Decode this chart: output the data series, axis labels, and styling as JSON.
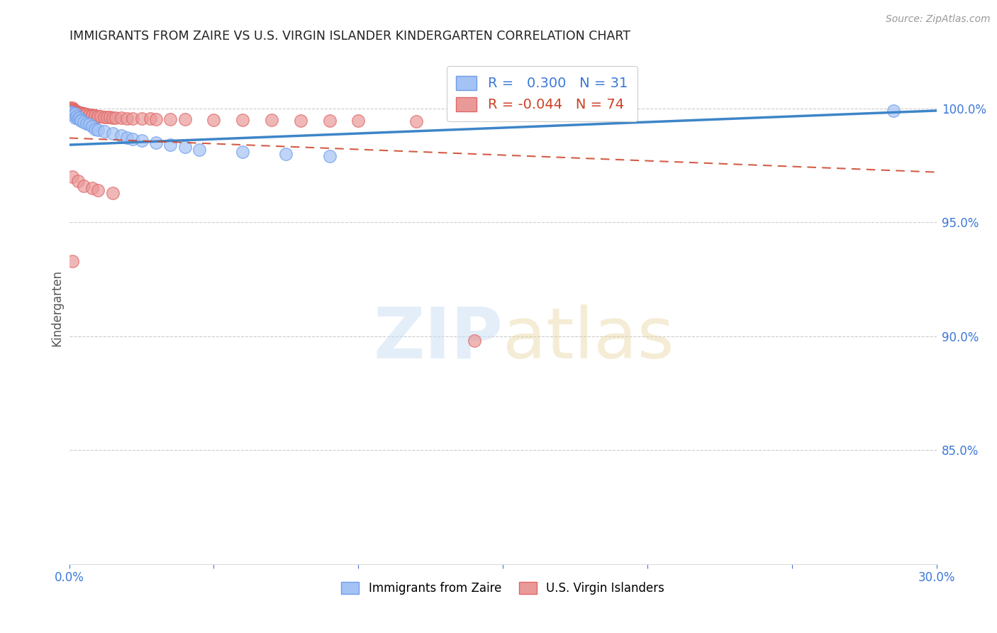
{
  "title": "IMMIGRANTS FROM ZAIRE VS U.S. VIRGIN ISLANDER KINDERGARTEN CORRELATION CHART",
  "source": "Source: ZipAtlas.com",
  "ylabel": "Kindergarten",
  "legend_label_blue": "Immigrants from Zaire",
  "legend_label_pink": "U.S. Virgin Islanders",
  "R_blue": 0.3,
  "N_blue": 31,
  "R_pink": -0.044,
  "N_pink": 74,
  "blue_color": "#a4c2f4",
  "blue_edge_color": "#6d9eeb",
  "pink_color": "#ea9999",
  "pink_edge_color": "#e06666",
  "blue_line_color": "#3d85c8",
  "pink_line_color": "#cc4125",
  "xlim": [
    0.0,
    0.3
  ],
  "ylim": [
    0.8,
    1.025
  ],
  "right_ytick_values": [
    1.0,
    0.95,
    0.9,
    0.85
  ],
  "right_ytick_labels": [
    "100.0%",
    "95.0%",
    "90.0%",
    "85.0%"
  ],
  "blue_scatter_x": [
    0.0005,
    0.001,
    0.0012,
    0.0015,
    0.002,
    0.002,
    0.0025,
    0.003,
    0.0035,
    0.004,
    0.004,
    0.005,
    0.006,
    0.007,
    0.008,
    0.009,
    0.01,
    0.012,
    0.015,
    0.018,
    0.02,
    0.022,
    0.025,
    0.03,
    0.035,
    0.04,
    0.045,
    0.06,
    0.075,
    0.09,
    0.285
  ],
  "blue_scatter_y": [
    0.9985,
    0.9975,
    0.998,
    0.997,
    0.9978,
    0.996,
    0.9965,
    0.9955,
    0.996,
    0.995,
    0.9945,
    0.994,
    0.9935,
    0.993,
    0.992,
    0.991,
    0.9905,
    0.99,
    0.989,
    0.988,
    0.987,
    0.9865,
    0.986,
    0.985,
    0.984,
    0.983,
    0.982,
    0.981,
    0.98,
    0.979,
    0.999
  ],
  "pink_scatter_x": [
    0.0002,
    0.0003,
    0.0004,
    0.0005,
    0.0006,
    0.0007,
    0.0008,
    0.0009,
    0.001,
    0.001,
    0.001,
    0.001,
    0.001,
    0.001,
    0.0012,
    0.0012,
    0.0015,
    0.0015,
    0.0018,
    0.002,
    0.002,
    0.002,
    0.002,
    0.0022,
    0.0025,
    0.003,
    0.003,
    0.003,
    0.003,
    0.004,
    0.004,
    0.004,
    0.005,
    0.005,
    0.005,
    0.006,
    0.006,
    0.007,
    0.007,
    0.008,
    0.008,
    0.009,
    0.009,
    0.01,
    0.01,
    0.011,
    0.012,
    0.013,
    0.014,
    0.015,
    0.016,
    0.018,
    0.02,
    0.022,
    0.025,
    0.028,
    0.03,
    0.035,
    0.04,
    0.05,
    0.06,
    0.07,
    0.08,
    0.09,
    0.1,
    0.12,
    0.001,
    0.003,
    0.005,
    0.008,
    0.01,
    0.015,
    0.001,
    0.14
  ],
  "pink_scatter_y": [
    1.0002,
    1.0001,
    1.0,
    0.9998,
    1.0,
    0.9999,
    0.9997,
    0.9998,
    1.0,
    0.9999,
    0.9998,
    0.9997,
    0.9996,
    1.0001,
    0.9995,
    0.9994,
    0.9993,
    0.9992,
    0.9991,
    0.999,
    0.9989,
    0.9988,
    0.9987,
    0.9986,
    0.9985,
    0.9984,
    0.9983,
    0.9982,
    0.9981,
    0.998,
    0.9979,
    0.9978,
    0.9977,
    0.9976,
    0.9975,
    0.9974,
    0.9973,
    0.9972,
    0.9971,
    0.997,
    0.9969,
    0.9968,
    0.9967,
    0.9966,
    0.9965,
    0.9964,
    0.9963,
    0.9962,
    0.9961,
    0.996,
    0.9959,
    0.9958,
    0.9957,
    0.9956,
    0.9955,
    0.9954,
    0.9953,
    0.9952,
    0.9951,
    0.995,
    0.9949,
    0.9948,
    0.9947,
    0.9946,
    0.9945,
    0.9944,
    0.97,
    0.968,
    0.966,
    0.965,
    0.964,
    0.963,
    0.933,
    0.898
  ],
  "blue_trend_x": [
    0.0,
    0.3
  ],
  "blue_trend_y": [
    0.984,
    0.999
  ],
  "pink_trend_x": [
    0.0,
    0.3
  ],
  "pink_trend_y": [
    0.987,
    0.972
  ]
}
